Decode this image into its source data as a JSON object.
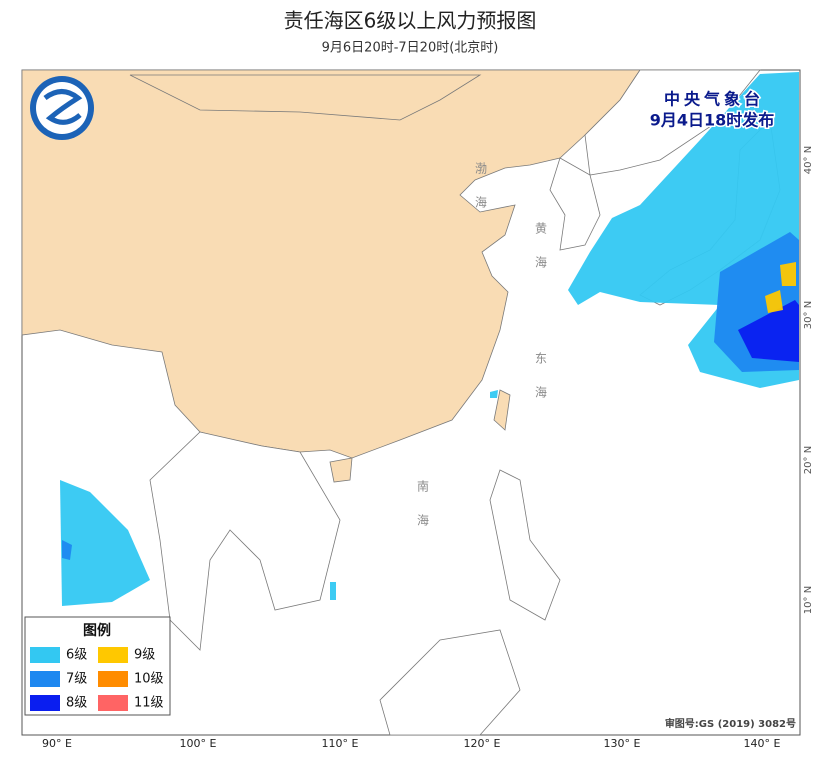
{
  "title": "责任海区6级以上风力预报图",
  "subtitle": "9月6日20时-7日20时(北京时)",
  "issuer": {
    "name": "中央气象台",
    "time": "9月4日18时发布"
  },
  "legend": {
    "title": "图例",
    "items": [
      {
        "label": "6级",
        "color": "#33c8f2"
      },
      {
        "label": "7级",
        "color": "#1e88f0"
      },
      {
        "label": "8级",
        "color": "#0a1ef0"
      },
      {
        "label": "9级",
        "color": "#ffc800"
      },
      {
        "label": "10级",
        "color": "#ff8c00"
      },
      {
        "label": "11级",
        "color": "#ff6464"
      }
    ]
  },
  "longitude_labels": [
    "90° E",
    "100° E",
    "110° E",
    "120° E",
    "130° E",
    "140° E"
  ],
  "latitude_labels": [
    "40° N",
    "30° N",
    "20° N",
    "10° N"
  ],
  "sea_labels": [
    "渤海",
    "黄海",
    "东海",
    "南海"
  ],
  "review_number": "审图号:GS (2019) 3082号"
}
